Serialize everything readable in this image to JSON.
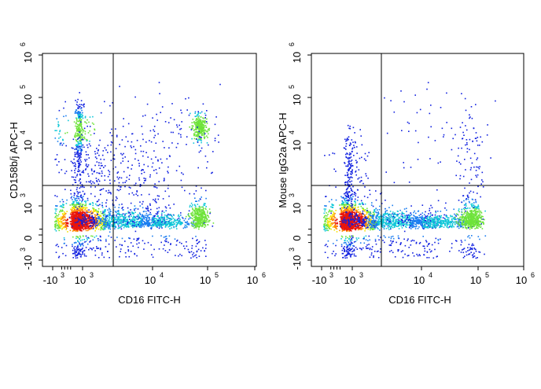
{
  "chart_data": [
    {
      "type": "scatter",
      "subtype": "flow-cytometry-density-plot",
      "title": "",
      "xlabel": "CD16 FITC-H",
      "ylabel": "CD158b/j APC-H",
      "x_scale": "biexponential",
      "y_scale": "biexponential",
      "x_tick_labels": [
        {
          "base": "-10",
          "exp": "3",
          "value": -1000
        },
        {
          "base": "10",
          "exp": "3",
          "value": 1000
        },
        {
          "base": "10",
          "exp": "4",
          "value": 10000
        },
        {
          "base": "10",
          "exp": "5",
          "value": 100000
        },
        {
          "base": "10",
          "exp": "6",
          "value": 1000000
        }
      ],
      "y_tick_labels": [
        {
          "base": "-10",
          "exp": "3",
          "value": -1000
        },
        {
          "base": "0",
          "exp": "",
          "value": 0
        },
        {
          "base": "10",
          "exp": "3",
          "value": 1000
        },
        {
          "base": "10",
          "exp": "4",
          "value": 10000
        },
        {
          "base": "10",
          "exp": "5",
          "value": 100000
        },
        {
          "base": "10",
          "exp": "6",
          "value": 1000000
        }
      ],
      "gate_x": 2500,
      "gate_y": 1900,
      "grid": false,
      "legend": "none",
      "populations": [
        {
          "x": 800,
          "y": 500,
          "sx": 0.16,
          "sy": 0.12,
          "n": 1700,
          "kind": "dense"
        },
        {
          "x": 4000,
          "y": 500,
          "sx": 0.22,
          "sy": 0.08,
          "n": 650,
          "kind": "band"
        },
        {
          "x": 18000,
          "y": 450,
          "sx": 0.18,
          "sy": 0.07,
          "n": 350,
          "kind": "band"
        },
        {
          "x": 70000,
          "y": 600,
          "sx": 0.05,
          "sy": 0.09,
          "n": 380,
          "kind": "cluster"
        },
        {
          "x": 750,
          "y": 20000,
          "sx": 0.06,
          "sy": 0.2,
          "n": 320,
          "kind": "cluster"
        },
        {
          "x": 70000,
          "y": 22000,
          "sx": 0.04,
          "sy": 0.08,
          "n": 300,
          "kind": "cluster"
        },
        {
          "x": 1200,
          "y": 3500,
          "sx": 0.2,
          "sy": 0.2,
          "n": 220,
          "kind": "sparse"
        },
        {
          "x": 15000,
          "y": 15000,
          "sx": 0.35,
          "sy": 0.3,
          "n": 160,
          "kind": "sparse"
        },
        {
          "x": 8000,
          "y": 2000,
          "sx": 0.3,
          "sy": 0.15,
          "n": 120,
          "kind": "sparse"
        }
      ]
    },
    {
      "type": "scatter",
      "subtype": "flow-cytometry-density-plot",
      "title": "",
      "xlabel": "CD16 FITC-H",
      "ylabel": "Mouse IgG2a APC-H",
      "x_scale": "biexponential",
      "y_scale": "biexponential",
      "x_tick_labels": [
        {
          "base": "-10",
          "exp": "3",
          "value": -1000
        },
        {
          "base": "10",
          "exp": "3",
          "value": 1000
        },
        {
          "base": "10",
          "exp": "4",
          "value": 10000
        },
        {
          "base": "10",
          "exp": "5",
          "value": 100000
        },
        {
          "base": "10",
          "exp": "6",
          "value": 1000000
        }
      ],
      "y_tick_labels": [
        {
          "base": "-10",
          "exp": "3",
          "value": -1000
        },
        {
          "base": "0",
          "exp": "",
          "value": 0
        },
        {
          "base": "10",
          "exp": "3",
          "value": 1000
        },
        {
          "base": "10",
          "exp": "4",
          "value": 10000
        },
        {
          "base": "10",
          "exp": "5",
          "value": 100000
        },
        {
          "base": "10",
          "exp": "6",
          "value": 1000000
        }
      ],
      "gate_x": 2500,
      "gate_y": 1900,
      "grid": false,
      "legend": "none",
      "populations": [
        {
          "x": 800,
          "y": 500,
          "sx": 0.16,
          "sy": 0.12,
          "n": 1700,
          "kind": "dense"
        },
        {
          "x": 4000,
          "y": 500,
          "sx": 0.25,
          "sy": 0.08,
          "n": 750,
          "kind": "band"
        },
        {
          "x": 20000,
          "y": 450,
          "sx": 0.2,
          "sy": 0.07,
          "n": 450,
          "kind": "band"
        },
        {
          "x": 75000,
          "y": 550,
          "sx": 0.06,
          "sy": 0.09,
          "n": 550,
          "kind": "cluster"
        },
        {
          "x": 800,
          "y": 3500,
          "sx": 0.08,
          "sy": 0.2,
          "n": 200,
          "kind": "sparse"
        },
        {
          "x": 15000,
          "y": 20000,
          "sx": 0.4,
          "sy": 0.35,
          "n": 60,
          "kind": "sparse"
        },
        {
          "x": 70000,
          "y": 5000,
          "sx": 0.08,
          "sy": 0.3,
          "n": 80,
          "kind": "sparse"
        }
      ]
    }
  ]
}
